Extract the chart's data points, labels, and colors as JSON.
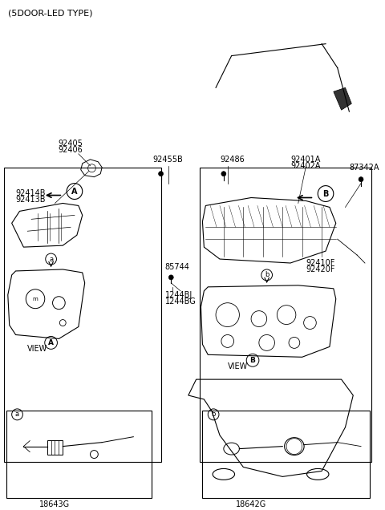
{
  "title": "(5DOOR-LED TYPE)",
  "bg_color": "#ffffff",
  "line_color": "#000000",
  "text_color": "#000000",
  "fig_width": 4.8,
  "fig_height": 6.36,
  "labels": {
    "top_left": "(5DOOR-LED TYPE)",
    "p92405": "92405",
    "p92406": "92406",
    "p92455B": "92455B",
    "p92486": "92486",
    "p92401A": "92401A",
    "p92402A": "92402A",
    "p87342A": "87342A",
    "p92414B": "92414B",
    "p92413B": "92413B",
    "p85744": "85744",
    "p1244BJ": "1244BJ",
    "p1244BG": "1244BG",
    "p92410F": "92410F",
    "p92420F": "92420F",
    "viewA": "VIEW",
    "viewB": "VIEW",
    "p18643G": "18643G",
    "p18642G": "18642G"
  }
}
